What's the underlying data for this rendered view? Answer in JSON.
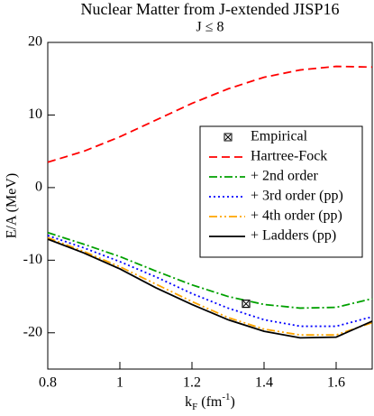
{
  "chart_data": {
    "type": "line",
    "title": "Nuclear Matter from J-extended JISP16",
    "subtitle": "J ≤ 8",
    "x_label": {
      "base": "k",
      "sub": "F",
      "text": " (fm",
      "sup": "-1",
      "end": ")"
    },
    "y_label": "E/A (MeV)",
    "x": [
      0.8,
      0.9,
      1.0,
      1.1,
      1.2,
      1.3,
      1.4,
      1.5,
      1.6,
      1.7
    ],
    "series": [
      {
        "name": "Hartree-Fock",
        "color": "#ff0000",
        "dash": "9,5",
        "values": [
          3.5,
          5,
          7,
          9.3,
          11.6,
          13.6,
          15.2,
          16.2,
          16.7,
          16.6
        ]
      },
      {
        "name": "+ 2nd order",
        "color": "#00a000",
        "dash": "9,3,2,3",
        "values": [
          -6.2,
          -7.8,
          -9.5,
          -11.5,
          -13.4,
          -15,
          -16.1,
          -16.6,
          -16.5,
          -15.3
        ]
      },
      {
        "name": "+ 3rd order (pp)",
        "color": "#0000ff",
        "dash": "2,3",
        "values": [
          -6.6,
          -8.3,
          -10.2,
          -12.3,
          -14.6,
          -16.6,
          -18.2,
          -19.1,
          -19.1,
          -17.8
        ]
      },
      {
        "name": "+ 4th order (pp)",
        "color": "#ffa500",
        "dash": "9,3,2,3,2,3",
        "values": [
          -6.9,
          -8.8,
          -10.9,
          -13.3,
          -15.7,
          -17.9,
          -19.5,
          -20.3,
          -20.3,
          -18.6
        ]
      },
      {
        "name": "+ Ladders (pp)",
        "color": "#000000",
        "dash": "none",
        "values": [
          -7.1,
          -9.0,
          -11.2,
          -13.8,
          -16.1,
          -18.2,
          -19.8,
          -20.7,
          -20.6,
          -18.4
        ]
      }
    ],
    "points": {
      "name": "Empirical",
      "color": "#000000",
      "x": [
        1.35
      ],
      "values": [
        -16
      ]
    },
    "xlim": [
      0.8,
      1.7
    ],
    "ylim": [
      -25,
      20
    ],
    "xticks": [
      0.8,
      1,
      1.2,
      1.4,
      1.6
    ],
    "yticks": [
      -20,
      -10,
      0,
      10,
      20
    ]
  }
}
